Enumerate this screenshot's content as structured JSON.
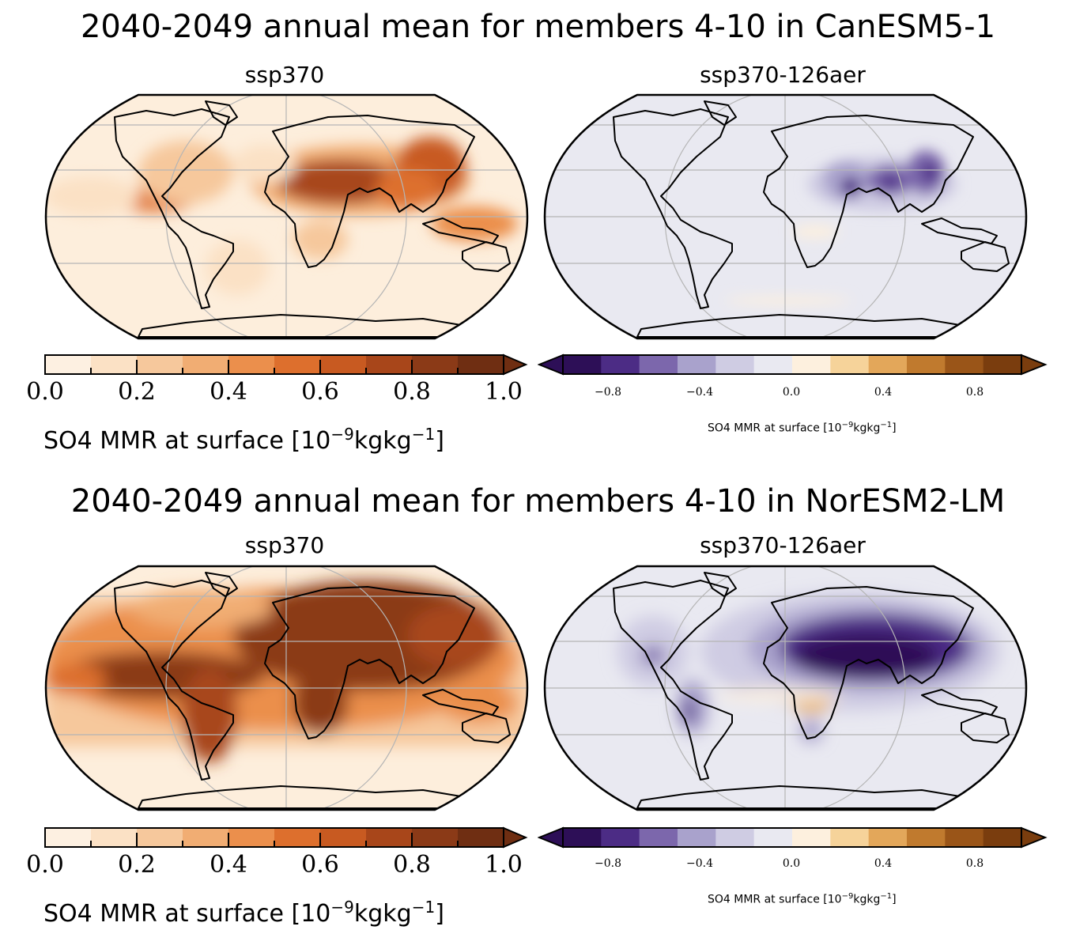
{
  "figures": [
    {
      "title": "2040-2049 annual mean for members 4-10 in CanESM5-1",
      "panels": [
        {
          "title": "ssp370"
        },
        {
          "title": "ssp370-126aer"
        }
      ],
      "colorbar_left": {
        "ticks": [
          "0.0",
          "0.2",
          "0.4",
          "0.6",
          "0.8",
          "1.0"
        ],
        "label_prefix": "SO4 MMR at surface [10",
        "label_exp": "−9",
        "label_mid": "kgkg",
        "label_exp2": "−1",
        "label_suffix": "]"
      },
      "colorbar_right": {
        "ticks": [
          "−0.8",
          "−0.4",
          "0.0",
          "0.4",
          "0.8"
        ],
        "label_prefix": "SO4 MMR at surface [10",
        "label_exp": "−9",
        "label_mid": "kgkg",
        "label_exp2": "−1",
        "label_suffix": "]"
      }
    },
    {
      "title": "2040-2049 annual mean for members 4-10 in NorESM2-LM",
      "panels": [
        {
          "title": "ssp370"
        },
        {
          "title": "ssp370-126aer"
        }
      ],
      "colorbar_left": {
        "ticks": [
          "0.0",
          "0.2",
          "0.4",
          "0.6",
          "0.8",
          "1.0"
        ],
        "label_prefix": "SO4 MMR at surface [10",
        "label_exp": "−9",
        "label_mid": "kgkg",
        "label_exp2": "−1",
        "label_suffix": "]"
      },
      "colorbar_right": {
        "ticks": [
          "−0.8",
          "−0.4",
          "0.0",
          "0.4",
          "0.8"
        ],
        "label_prefix": "SO4 MMR at surface [10",
        "label_exp": "−9",
        "label_mid": "kgkg",
        "label_exp2": "−1",
        "label_suffix": "]"
      }
    }
  ],
  "colors": {
    "seq": [
      "#fdf0e1",
      "#fbe1c5",
      "#f6c89c",
      "#f1ad73",
      "#eb8f4c",
      "#dd6f2d",
      "#c85a21",
      "#a8461a",
      "#8b3a17",
      "#6f2e12"
    ],
    "div": [
      "#2d0f57",
      "#4c2c85",
      "#7c67ac",
      "#a9a2cc",
      "#cfcce3",
      "#e9e9f1",
      "#fdf0de",
      "#f6d39a",
      "#e3a75a",
      "#c07a2e",
      "#9a5518",
      "#7a3d0e"
    ]
  }
}
